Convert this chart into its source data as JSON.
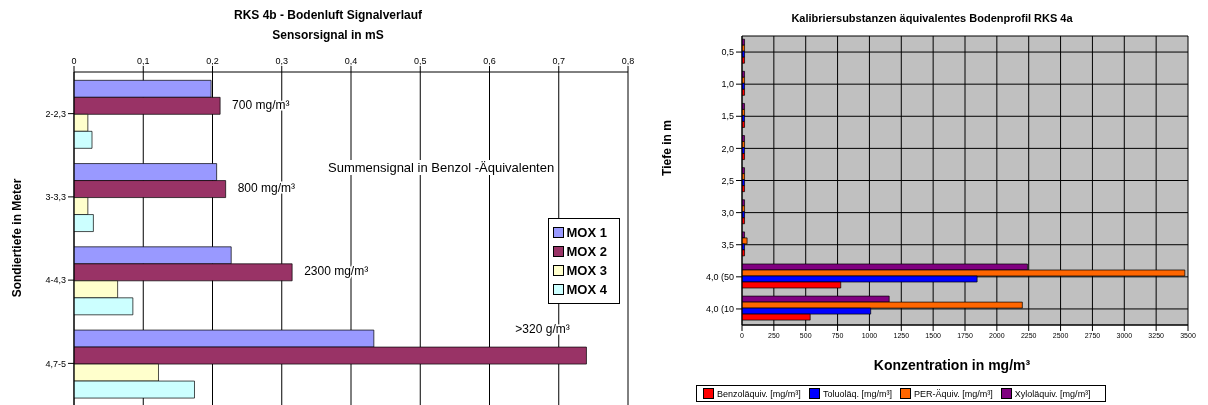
{
  "chart_data": [
    {
      "type": "bar",
      "orientation": "horizontal",
      "title": "RKS 4b - Bodenluft  Signalverlauf",
      "xlabel": "Sensorsignal in mS",
      "ylabel": "Sondiertiefe in Meter",
      "categories": [
        "2-2,3",
        "3-3,3",
        "4-4,3",
        "4,7-5"
      ],
      "series": [
        {
          "name": "MOX 1",
          "color": "#9999ff",
          "values": [
            0.198,
            0.206,
            0.227,
            0.433
          ]
        },
        {
          "name": "MOX 2",
          "color": "#993366",
          "values": [
            0.211,
            0.219,
            0.315,
            0.74
          ]
        },
        {
          "name": "MOX 3",
          "color": "#ffffcc",
          "values": [
            0.02,
            0.02,
            0.063,
            0.122
          ]
        },
        {
          "name": "MOX 4",
          "color": "#ccffff",
          "values": [
            0.026,
            0.028,
            0.085,
            0.174
          ]
        }
      ],
      "xlim": [
        0,
        0.8
      ],
      "xticks": [
        0,
        {
          "value": 0.1,
          "label": "0,1"
        },
        {
          "value": 0.2,
          "label": "0,2"
        },
        {
          "value": 0.3,
          "label": "0,3"
        },
        {
          "value": 0.4,
          "label": "0,4"
        },
        {
          "value": 0.5,
          "label": "0,5"
        },
        {
          "value": 0.6,
          "label": "0,6"
        },
        {
          "value": 0.7,
          "label": "0,7"
        },
        {
          "value": 0.8,
          "label": "0,8"
        }
      ],
      "annotations": [
        {
          "text": "700 mg/m³",
          "x": 0.211,
          "y": "2-2,3"
        },
        {
          "text": "800 mg/m³",
          "x": 0.219,
          "y": "3-3,3"
        },
        {
          "text": "2300 mg/m³",
          "x": 0.315,
          "y": "4-4,3"
        },
        {
          "text": ">320 g/m³",
          "x": 0.62,
          "y": "4,7-5"
        },
        "Summensignal in Benzol -Äquivalenten"
      ],
      "grid": "x",
      "legend": "right"
    },
    {
      "type": "bar",
      "orientation": "horizontal",
      "title": "Kalibriersubstanzen äquivalentes Bodenprofil RKS 4a",
      "xlabel": "Konzentration in mg/m³",
      "ylabel": "Tiefe in m",
      "categories": [
        "0,5",
        "1,0",
        "1,5",
        "2,0",
        "2,5",
        "3,0",
        "3,5",
        "4,0 (50",
        "4,0 (10"
      ],
      "series": [
        {
          "name": "Benzoläquiv. [mg/m³]",
          "color": "#ff0000",
          "values": [
            20,
            20,
            20,
            20,
            20,
            20,
            20,
            775,
            535
          ]
        },
        {
          "name": "Toluoläq. [mg/m³]",
          "color": "#0000ff",
          "values": [
            20,
            20,
            20,
            20,
            20,
            20,
            20,
            1845,
            1010
          ]
        },
        {
          "name": "PER-Äquiv. [mg/m³]",
          "color": "#ff6600",
          "values": [
            20,
            20,
            20,
            20,
            20,
            20,
            40,
            3475,
            2200
          ]
        },
        {
          "name": "Xyloläquiv. [mg/m³]",
          "color": "#800080",
          "values": [
            20,
            20,
            20,
            20,
            20,
            20,
            20,
            2240,
            1155
          ]
        }
      ],
      "xlim": [
        0,
        3500
      ],
      "xticks": [
        0,
        250,
        500,
        750,
        1000,
        1250,
        1500,
        1750,
        2000,
        2250,
        2500,
        2750,
        3000,
        3250,
        3500
      ],
      "grid": true,
      "legend": "bottom"
    }
  ]
}
